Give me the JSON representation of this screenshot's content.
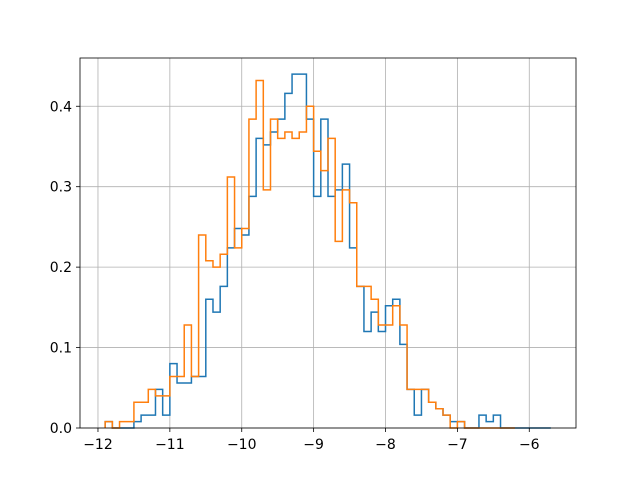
{
  "chart_data": {
    "type": "histogram",
    "title": "",
    "xlabel": "",
    "ylabel": "",
    "xlim": [
      -12.25,
      -5.35
    ],
    "ylim": [
      0,
      0.46
    ],
    "grid": true,
    "x_ticks": [
      -12,
      -11,
      -10,
      -9,
      -8,
      -7,
      -6
    ],
    "x_tick_labels": [
      "−12",
      "−11",
      "−10",
      "−9",
      "−8",
      "−7",
      "−6"
    ],
    "y_ticks": [
      0.0,
      0.1,
      0.2,
      0.3,
      0.4
    ],
    "y_tick_labels": [
      "0.0",
      "0.1",
      "0.2",
      "0.3",
      "0.4"
    ],
    "series": [
      {
        "color": "#1f77b4",
        "bin_edges": [
          -11.9,
          -11.8,
          -11.7,
          -11.6,
          -11.5,
          -11.4,
          -11.3,
          -11.2,
          -11.1,
          -11.0,
          -10.9,
          -10.8,
          -10.7,
          -10.6,
          -10.5,
          -10.4,
          -10.3,
          -10.2,
          -10.1,
          -10.0,
          -9.9,
          -9.8,
          -9.7,
          -9.6,
          -9.5,
          -9.4,
          -9.3,
          -9.2,
          -9.1,
          -9.0,
          -8.9,
          -8.8,
          -8.7,
          -8.6,
          -8.5,
          -8.4,
          -8.3,
          -8.2,
          -8.1,
          -8.0,
          -7.9,
          -7.8,
          -7.7,
          -7.6,
          -7.5,
          -7.4,
          -7.3,
          -7.2,
          -7.1,
          -7.0,
          -6.9,
          -6.8,
          -6.7,
          -6.6,
          -6.5,
          -6.4,
          -6.3,
          -6.2,
          -6.1,
          -6.0,
          -5.9,
          -5.8,
          -5.7
        ],
        "values": [
          0.008,
          0.0,
          0.0,
          0.0,
          0.008,
          0.016,
          0.016,
          0.048,
          0.016,
          0.08,
          0.056,
          0.056,
          0.064,
          0.064,
          0.16,
          0.144,
          0.176,
          0.224,
          0.248,
          0.24,
          0.288,
          0.36,
          0.352,
          0.368,
          0.384,
          0.416,
          0.44,
          0.44,
          0.384,
          0.288,
          0.384,
          0.288,
          0.296,
          0.328,
          0.224,
          0.176,
          0.12,
          0.144,
          0.12,
          0.152,
          0.16,
          0.104,
          0.048,
          0.016,
          0.048,
          0.032,
          0.024,
          0.016,
          0.008,
          0.008,
          0.0,
          0.0,
          0.016,
          0.008,
          0.016,
          0.0,
          0.0,
          0.0,
          0.0,
          0.0,
          0.0,
          0.0
        ]
      },
      {
        "color": "#ff7f0e",
        "bin_edges": [
          -11.9,
          -11.8,
          -11.7,
          -11.6,
          -11.5,
          -11.4,
          -11.3,
          -11.2,
          -11.1,
          -11.0,
          -10.9,
          -10.8,
          -10.7,
          -10.6,
          -10.5,
          -10.4,
          -10.3,
          -10.2,
          -10.1,
          -10.0,
          -9.9,
          -9.8,
          -9.7,
          -9.6,
          -9.5,
          -9.4,
          -9.3,
          -9.2,
          -9.1,
          -9.0,
          -8.9,
          -8.8,
          -8.7,
          -8.6,
          -8.5,
          -8.4,
          -8.3,
          -8.2,
          -8.1,
          -8.0,
          -7.9,
          -7.8,
          -7.7,
          -7.6,
          -7.5,
          -7.4,
          -7.3,
          -7.2,
          -7.1,
          -7.0,
          -6.9,
          -6.8,
          -6.7,
          -6.6,
          -6.5,
          -6.4,
          -6.3,
          -6.2
        ],
        "values": [
          0.008,
          0.0,
          0.008,
          0.008,
          0.032,
          0.032,
          0.048,
          0.04,
          0.04,
          0.064,
          0.064,
          0.128,
          0.064,
          0.24,
          0.208,
          0.2,
          0.216,
          0.312,
          0.224,
          0.248,
          0.384,
          0.432,
          0.296,
          0.384,
          0.36,
          0.368,
          0.36,
          0.368,
          0.4,
          0.344,
          0.32,
          0.36,
          0.232,
          0.296,
          0.28,
          0.176,
          0.176,
          0.16,
          0.128,
          0.128,
          0.152,
          0.128,
          0.048,
          0.048,
          0.048,
          0.032,
          0.024,
          0.016,
          0.0,
          0.008,
          0.0,
          0.0,
          0.0,
          0.0,
          0.0,
          0.0,
          0.0
        ]
      }
    ]
  }
}
